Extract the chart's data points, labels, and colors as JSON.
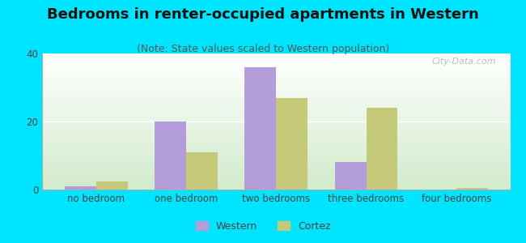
{
  "title": "Bedrooms in renter-occupied apartments in Western",
  "subtitle": "(Note: State values scaled to Western population)",
  "categories": [
    "no bedroom",
    "one bedroom",
    "two bedrooms",
    "three bedrooms",
    "four bedrooms"
  ],
  "western_values": [
    1,
    20,
    36,
    8,
    0
  ],
  "cortez_values": [
    2.5,
    11,
    27,
    24,
    0.5
  ],
  "western_color": "#b39ddb",
  "cortez_color": "#c5ca7a",
  "bar_width": 0.35,
  "ylim": [
    0,
    40
  ],
  "yticks": [
    0,
    20,
    40
  ],
  "bg_outer": "#00e5ff",
  "bg_plot_top": "#ffffff",
  "bg_plot_bottom": "#d0e8c8",
  "title_fontsize": 13,
  "subtitle_fontsize": 9,
  "axis_label_fontsize": 8.5,
  "legend_fontsize": 9,
  "watermark_text": "City-Data.com",
  "watermark_color": "#a0b8b8",
  "tick_color": "#444444",
  "spine_color": "#aaaaaa",
  "grid_color": "#ffffff"
}
